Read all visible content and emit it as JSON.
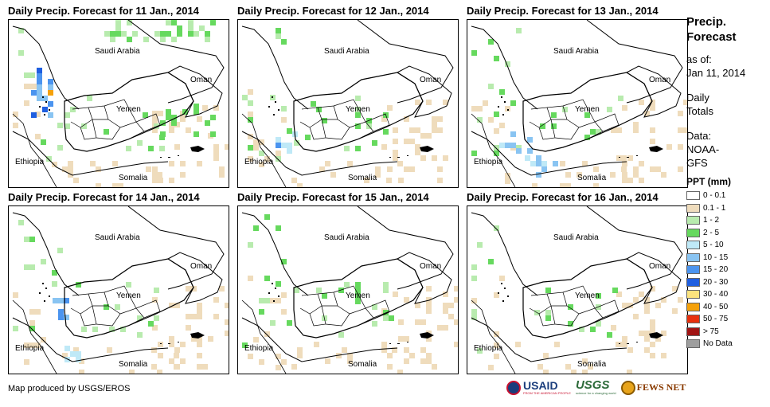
{
  "panels": [
    {
      "title": "Daily Precip. Forecast for 11 Jan., 2014"
    },
    {
      "title": "Daily Precip. Forecast for 12 Jan., 2014"
    },
    {
      "title": "Daily Precip. Forecast for 13 Jan., 2014"
    },
    {
      "title": "Daily Precip. Forecast for 14 Jan., 2014"
    },
    {
      "title": "Daily Precip. Forecast for 15 Jan., 2014"
    },
    {
      "title": "Daily Precip. Forecast for 16 Jan., 2014"
    }
  ],
  "map_labels": {
    "saudi": "Saudi Arabia",
    "oman": "Oman",
    "yemen": "Yemen",
    "ethiopia": "Ethiopia",
    "somalia": "Somalia"
  },
  "sidebar": {
    "title_line1": "Precip.",
    "title_line2": "Forecast",
    "asof_line1": "as of:",
    "asof_line2": "Jan 11, 2014",
    "daily_line1": "Daily",
    "daily_line2": "Totals",
    "data_line1": "Data:",
    "data_line2": "NOAA-",
    "data_line3": "GFS",
    "legend_title": "PPT (mm)",
    "legend": [
      {
        "label": "0 - 0.1",
        "color": "#ffffff"
      },
      {
        "label": "0.1 - 1",
        "color": "#efdcbc"
      },
      {
        "label": "1 - 2",
        "color": "#b8ebae"
      },
      {
        "label": "2 - 5",
        "color": "#66d95e"
      },
      {
        "label": "5 - 10",
        "color": "#bfe9f7"
      },
      {
        "label": "10 - 15",
        "color": "#89c4f2"
      },
      {
        "label": "15 - 20",
        "color": "#4b94ef"
      },
      {
        "label": "20 - 30",
        "color": "#1f5fe0"
      },
      {
        "label": "30 - 40",
        "color": "#fce37e"
      },
      {
        "label": "40 - 50",
        "color": "#f5a10a"
      },
      {
        "label": "50 - 75",
        "color": "#e8310e"
      },
      {
        "label": "> 75",
        "color": "#a11414"
      },
      {
        "label": "No Data",
        "color": "#9e9e9e"
      }
    ]
  },
  "footer": {
    "credit": "Map produced by USGS/EROS"
  },
  "logos": {
    "usaid": "USAID",
    "usaid_sub": "FROM THE AMERICAN PEOPLE",
    "usgs": "USGS",
    "usgs_sub": "science for a changing world",
    "fews": "FEWS NET"
  }
}
